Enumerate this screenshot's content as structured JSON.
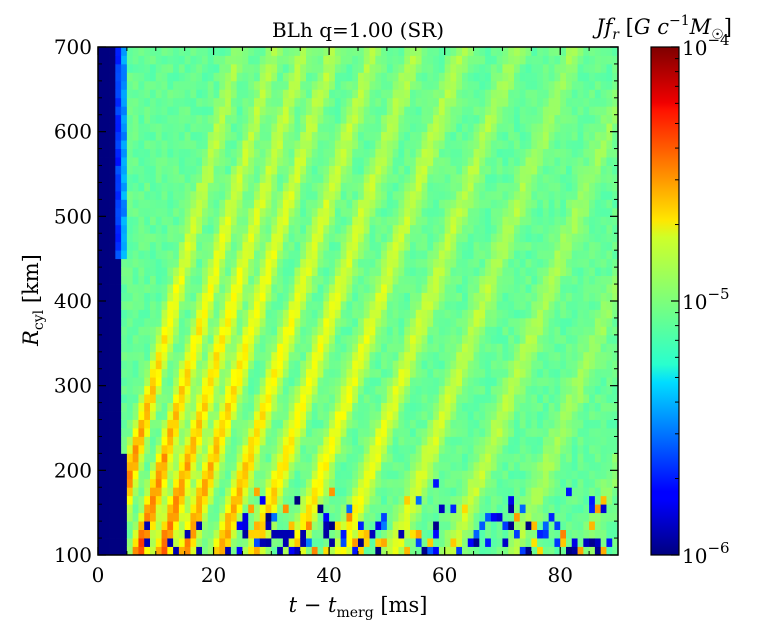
{
  "chart_data": {
    "type": "heatmap",
    "title": "BLh q=1.00 (SR)",
    "xlabel": "t − t_merg [ms]",
    "ylabel": "R_cyl [km]",
    "xlim": [
      0,
      90
    ],
    "ylim": [
      100,
      700
    ],
    "xticks": [
      "0",
      "20",
      "40",
      "60",
      "80"
    ],
    "yticks": [
      "100",
      "200",
      "300",
      "400",
      "500",
      "600",
      "700"
    ],
    "colorbar": {
      "label": "J f_r [G c⁻¹ M☉]",
      "scale": "log",
      "range": [
        1e-06,
        0.0001
      ],
      "ticks": [
        {
          "base": "10",
          "exp": "−6"
        },
        {
          "base": "10",
          "exp": "−5"
        },
        {
          "base": "10",
          "exp": "−4"
        }
      ],
      "colormap": "jet"
    },
    "grid": {
      "x_bin_ms": 1.0,
      "y_bin_km": 10,
      "description_values": {
        "pre_merger_band_value": 1e-06,
        "background_value": 1e-05,
        "peak_value": 0.0001
      }
    },
    "features": [
      {
        "name": "outflow ridges",
        "x_start": [
          2,
          7,
          11,
          15,
          21,
          27,
          34,
          42,
          51,
          61,
          72,
          84
        ],
        "slope_km_per_ms": 16
      },
      {
        "name": "low-value inner region",
        "t_range": [
          0,
          4
        ]
      }
    ],
    "colors": {
      "jet_low": "#00007f",
      "jet_mid": "#7fff7f",
      "jet_high": "#7f0000"
    }
  }
}
